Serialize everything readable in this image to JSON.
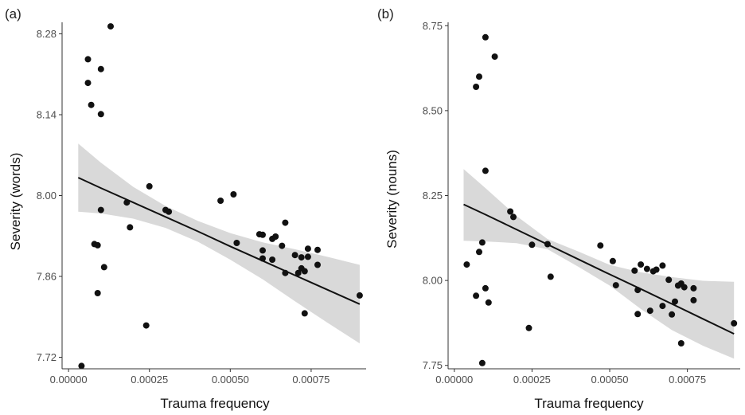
{
  "chart_data": [
    {
      "type": "scatter",
      "panel_tag": "(a)",
      "xlabel": "Trauma frequency",
      "ylabel": "Severity (words)",
      "xlim": [
        -2e-05,
        0.00092
      ],
      "ylim": [
        7.7,
        8.3
      ],
      "xticks": [
        0.0,
        0.00025,
        0.0005,
        0.00075
      ],
      "xtick_labels": [
        "0.00000",
        "0.00025",
        "0.00050",
        "0.00075"
      ],
      "yticks": [
        7.72,
        7.86,
        8.0,
        8.14,
        8.28
      ],
      "ytick_labels": [
        "7.72",
        "7.86",
        "8.00",
        "8.14",
        "8.28"
      ],
      "grid": false,
      "fit": {
        "x": [
          3e-05,
          0.0001,
          0.0002,
          0.0003,
          0.0004,
          0.0005,
          0.0006,
          0.0007,
          0.0008,
          0.0009
        ],
        "y": [
          8.031,
          8.013,
          7.988,
          7.963,
          7.938,
          7.912,
          7.887,
          7.862,
          7.837,
          7.812
        ],
        "lower": [
          7.972,
          7.969,
          7.96,
          7.944,
          7.92,
          7.889,
          7.855,
          7.817,
          7.78,
          7.744
        ],
        "upper": [
          8.09,
          8.057,
          8.015,
          7.982,
          7.956,
          7.935,
          7.919,
          7.907,
          7.894,
          7.88
        ]
      },
      "points": [
        {
          "x": 4e-05,
          "y": 7.705
        },
        {
          "x": 6e-05,
          "y": 8.236
        },
        {
          "x": 6e-05,
          "y": 8.195
        },
        {
          "x": 7e-05,
          "y": 8.157
        },
        {
          "x": 8e-05,
          "y": 7.916
        },
        {
          "x": 9e-05,
          "y": 7.914
        },
        {
          "x": 9e-05,
          "y": 7.831
        },
        {
          "x": 0.0001,
          "y": 8.219
        },
        {
          "x": 0.0001,
          "y": 8.141
        },
        {
          "x": 0.0001,
          "y": 7.975
        },
        {
          "x": 0.00011,
          "y": 7.876
        },
        {
          "x": 0.00013,
          "y": 8.293
        },
        {
          "x": 0.00018,
          "y": 7.988
        },
        {
          "x": 0.00019,
          "y": 7.945
        },
        {
          "x": 0.00024,
          "y": 7.775
        },
        {
          "x": 0.00025,
          "y": 8.016
        },
        {
          "x": 0.0003,
          "y": 7.975
        },
        {
          "x": 0.00031,
          "y": 7.972
        },
        {
          "x": 0.00047,
          "y": 7.991
        },
        {
          "x": 0.00051,
          "y": 8.002
        },
        {
          "x": 0.00052,
          "y": 7.918
        },
        {
          "x": 0.00059,
          "y": 7.933
        },
        {
          "x": 0.0006,
          "y": 7.905
        },
        {
          "x": 0.0006,
          "y": 7.891
        },
        {
          "x": 0.0006,
          "y": 7.932
        },
        {
          "x": 0.00063,
          "y": 7.925
        },
        {
          "x": 0.00063,
          "y": 7.889
        },
        {
          "x": 0.00064,
          "y": 7.929
        },
        {
          "x": 0.00066,
          "y": 7.913
        },
        {
          "x": 0.00067,
          "y": 7.953
        },
        {
          "x": 0.00067,
          "y": 7.866
        },
        {
          "x": 0.0007,
          "y": 7.897
        },
        {
          "x": 0.00071,
          "y": 7.866
        },
        {
          "x": 0.00072,
          "y": 7.874
        },
        {
          "x": 0.00072,
          "y": 7.893
        },
        {
          "x": 0.00073,
          "y": 7.869
        },
        {
          "x": 0.00073,
          "y": 7.796
        },
        {
          "x": 0.00074,
          "y": 7.894
        },
        {
          "x": 0.00074,
          "y": 7.908
        },
        {
          "x": 0.00077,
          "y": 7.906
        },
        {
          "x": 0.00077,
          "y": 7.88
        },
        {
          "x": 0.0009,
          "y": 7.827
        }
      ]
    },
    {
      "type": "scatter",
      "panel_tag": "(b)",
      "xlabel": "Trauma frequency",
      "ylabel": "Severity (nouns)",
      "xlim": [
        -2e-05,
        0.00092
      ],
      "ylim": [
        7.74,
        8.76
      ],
      "xticks": [
        0.0,
        0.00025,
        0.0005,
        0.00075
      ],
      "xtick_labels": [
        "0.00000",
        "0.00025",
        "0.00050",
        "0.00075"
      ],
      "yticks": [
        7.75,
        8.0,
        8.25,
        8.5,
        8.75
      ],
      "ytick_labels": [
        "7.75",
        "8.00",
        "8.25",
        "8.50",
        "8.75"
      ],
      "grid": false,
      "fit": {
        "x": [
          3e-05,
          0.0001,
          0.0002,
          0.0003,
          0.0004,
          0.0005,
          0.0006,
          0.0007,
          0.0008,
          0.0009
        ],
        "y": [
          8.224,
          8.194,
          8.15,
          8.106,
          8.062,
          8.018,
          7.975,
          7.931,
          7.887,
          7.843
        ],
        "lower": [
          8.117,
          8.115,
          8.11,
          8.092,
          8.04,
          7.985,
          7.916,
          7.854,
          7.808,
          7.77
        ],
        "upper": [
          8.328,
          8.272,
          8.19,
          8.122,
          8.085,
          8.046,
          8.024,
          8.01,
          7.999,
          7.996
        ]
      },
      "points": [
        {
          "x": 4e-05,
          "y": 8.047
        },
        {
          "x": 7e-05,
          "y": 8.57
        },
        {
          "x": 7e-05,
          "y": 7.955
        },
        {
          "x": 8e-05,
          "y": 8.6
        },
        {
          "x": 8e-05,
          "y": 8.084
        },
        {
          "x": 9e-05,
          "y": 8.112
        },
        {
          "x": 9e-05,
          "y": 7.757
        },
        {
          "x": 0.0001,
          "y": 8.716
        },
        {
          "x": 0.0001,
          "y": 8.323
        },
        {
          "x": 0.0001,
          "y": 7.977
        },
        {
          "x": 0.00011,
          "y": 7.935
        },
        {
          "x": 0.00013,
          "y": 8.659
        },
        {
          "x": 0.00018,
          "y": 8.203
        },
        {
          "x": 0.00019,
          "y": 8.187
        },
        {
          "x": 0.00024,
          "y": 7.86
        },
        {
          "x": 0.00025,
          "y": 8.105
        },
        {
          "x": 0.0003,
          "y": 8.107
        },
        {
          "x": 0.00031,
          "y": 8.011
        },
        {
          "x": 0.00047,
          "y": 8.103
        },
        {
          "x": 0.00051,
          "y": 8.057
        },
        {
          "x": 0.00052,
          "y": 7.986
        },
        {
          "x": 0.00058,
          "y": 8.029
        },
        {
          "x": 0.00059,
          "y": 7.972
        },
        {
          "x": 0.00059,
          "y": 7.901
        },
        {
          "x": 0.0006,
          "y": 8.047
        },
        {
          "x": 0.00062,
          "y": 8.034
        },
        {
          "x": 0.00063,
          "y": 7.911
        },
        {
          "x": 0.00064,
          "y": 8.027
        },
        {
          "x": 0.00065,
          "y": 8.032
        },
        {
          "x": 0.00067,
          "y": 8.044
        },
        {
          "x": 0.00067,
          "y": 7.925
        },
        {
          "x": 0.00069,
          "y": 8.002
        },
        {
          "x": 0.0007,
          "y": 7.9
        },
        {
          "x": 0.00071,
          "y": 7.938
        },
        {
          "x": 0.00072,
          "y": 7.985
        },
        {
          "x": 0.00073,
          "y": 7.991
        },
        {
          "x": 0.00073,
          "y": 7.815
        },
        {
          "x": 0.00074,
          "y": 7.98
        },
        {
          "x": 0.00077,
          "y": 7.977
        },
        {
          "x": 0.00077,
          "y": 7.942
        },
        {
          "x": 0.0009,
          "y": 7.874
        }
      ]
    }
  ]
}
